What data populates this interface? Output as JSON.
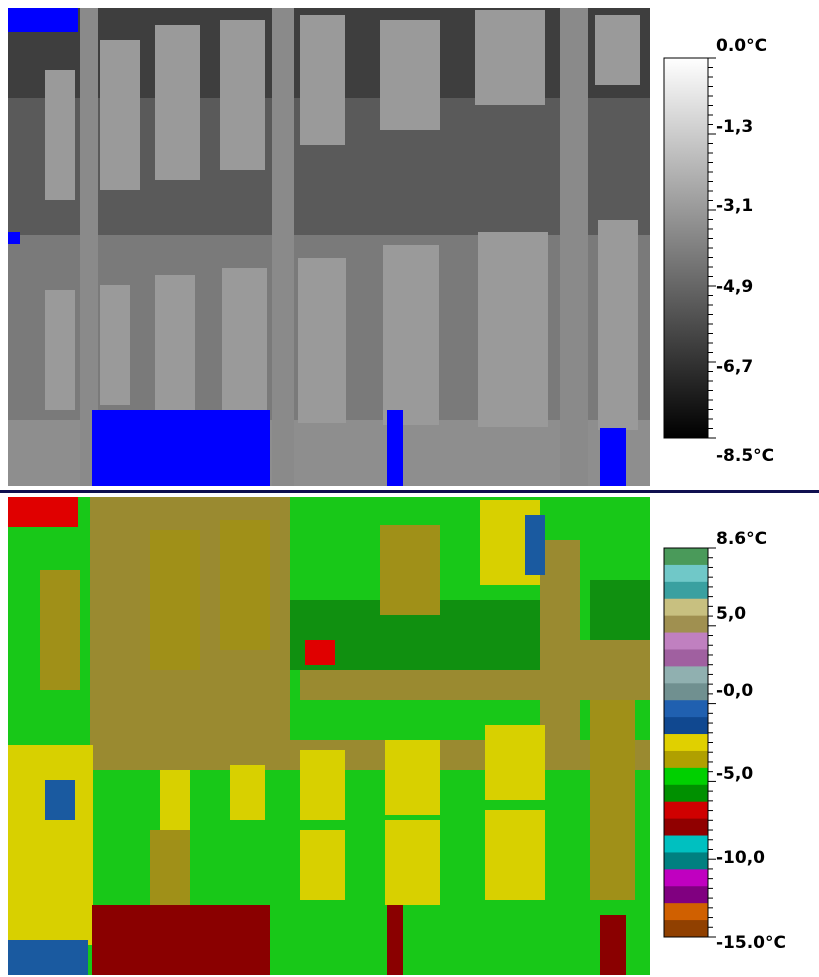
{
  "panels": [
    {
      "scale_labels": [
        "0.0°C",
        "-1,3",
        "-3,1",
        "-4,9",
        "-6,7",
        "-8.5°C"
      ]
    },
    {
      "scale_labels": [
        "8.6°C",
        "5,0",
        "-0,0",
        "-5,0",
        "-10,0",
        "-15.0°C"
      ]
    }
  ]
}
